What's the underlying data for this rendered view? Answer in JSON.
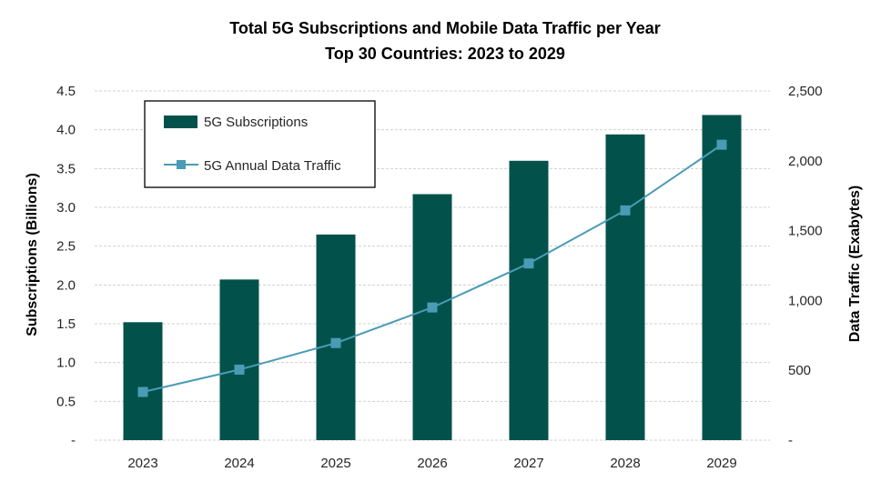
{
  "chart_data": {
    "type": "bar",
    "title": "Total 5G Subscriptions and Mobile Data Traffic per Year",
    "subtitle": "Top 30 Countries: 2023 to 2029",
    "categories": [
      "2023",
      "2024",
      "2025",
      "2026",
      "2027",
      "2028",
      "2029"
    ],
    "ylabel": "Subscriptions (Billions)",
    "y2label": "Data Traffic (Exabytes)",
    "ylim": [
      0,
      4.5
    ],
    "y2lim": [
      0,
      2500
    ],
    "y_ticks": [
      "-",
      "0.5",
      "1.0",
      "1.5",
      "2.0",
      "2.5",
      "3.0",
      "3.5",
      "4.0",
      "4.5"
    ],
    "y2_ticks": [
      "-",
      "500",
      "1,000",
      "1,500",
      "2,000",
      "2,500"
    ],
    "grid": true,
    "legend_position": "top-left",
    "series": [
      {
        "name": "5G Subscriptions",
        "type": "bar",
        "axis": "left",
        "color": "#02524b",
        "values": [
          1.52,
          2.07,
          2.65,
          3.17,
          3.6,
          3.94,
          4.19
        ]
      },
      {
        "name": "5G Annual Data Traffic",
        "type": "line",
        "axis": "right",
        "color": "#4a9bb5",
        "values": [
          345,
          505,
          695,
          950,
          1265,
          1645,
          2115
        ]
      }
    ]
  }
}
